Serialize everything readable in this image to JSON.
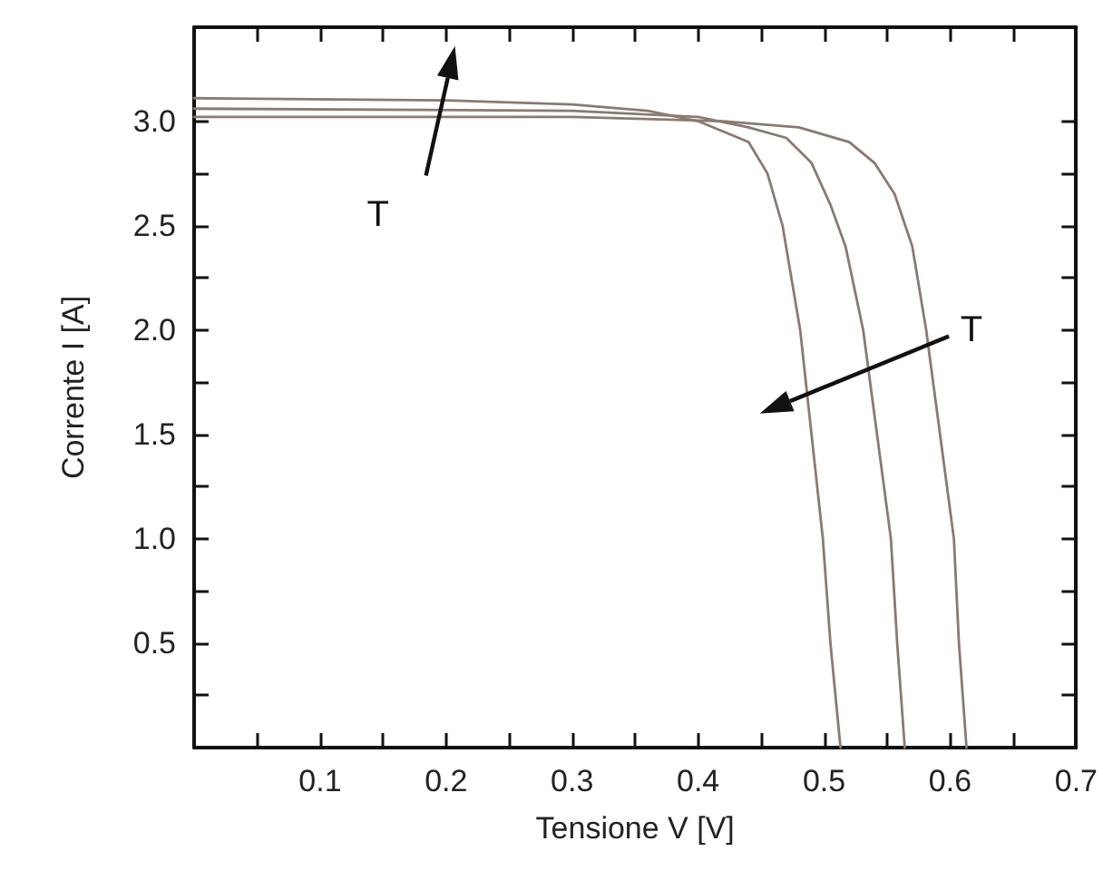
{
  "chart_data": {
    "type": "line",
    "xlabel": "Tensione V [V]",
    "ylabel": "Corrente I [A]",
    "xlim": [
      0,
      0.7
    ],
    "ylim": [
      0,
      3.45
    ],
    "xticks": [
      0.1,
      0.2,
      0.3,
      0.4,
      0.5,
      0.6,
      0.7
    ],
    "yticks": [
      0.5,
      {
        "value": 1,
        "label": "1.0"
      },
      1.5,
      {
        "value": 2,
        "label": "2.0"
      },
      2.5,
      {
        "value": 3,
        "label": "3.0"
      }
    ],
    "marker": "none",
    "line_style": "solid",
    "annotations": [
      "T",
      "T"
    ],
    "series": [
      {
        "color": "#8a7a70",
        "x": [
          0,
          0.2,
          0.3,
          0.36,
          0.4,
          0.44,
          0.455,
          0.467,
          0.481,
          0.49,
          0.499,
          0.505,
          0.513
        ],
        "values": [
          3.11,
          3.1,
          3.08,
          3.05,
          3.0,
          2.9,
          2.75,
          2.5,
          2.0,
          1.5,
          1.0,
          0.5,
          0
        ]
      },
      {
        "color": "#8a7a70",
        "x": [
          0,
          0.3,
          0.4,
          0.44,
          0.47,
          0.49,
          0.505,
          0.517,
          0.531,
          0.542,
          0.553,
          0.558,
          0.564
        ],
        "values": [
          3.06,
          3.05,
          3.02,
          2.97,
          2.92,
          2.8,
          2.6,
          2.4,
          2.0,
          1.5,
          1.0,
          0.5,
          0
        ]
      },
      {
        "color": "#8a7a70",
        "x": [
          0,
          0.3,
          0.42,
          0.48,
          0.52,
          0.54,
          0.556,
          0.57,
          0.581,
          0.592,
          0.603,
          0.607,
          0.613
        ],
        "values": [
          3.02,
          3.02,
          3.0,
          2.97,
          2.9,
          2.8,
          2.65,
          2.4,
          2.0,
          1.5,
          1.0,
          0.5,
          0
        ]
      }
    ]
  }
}
